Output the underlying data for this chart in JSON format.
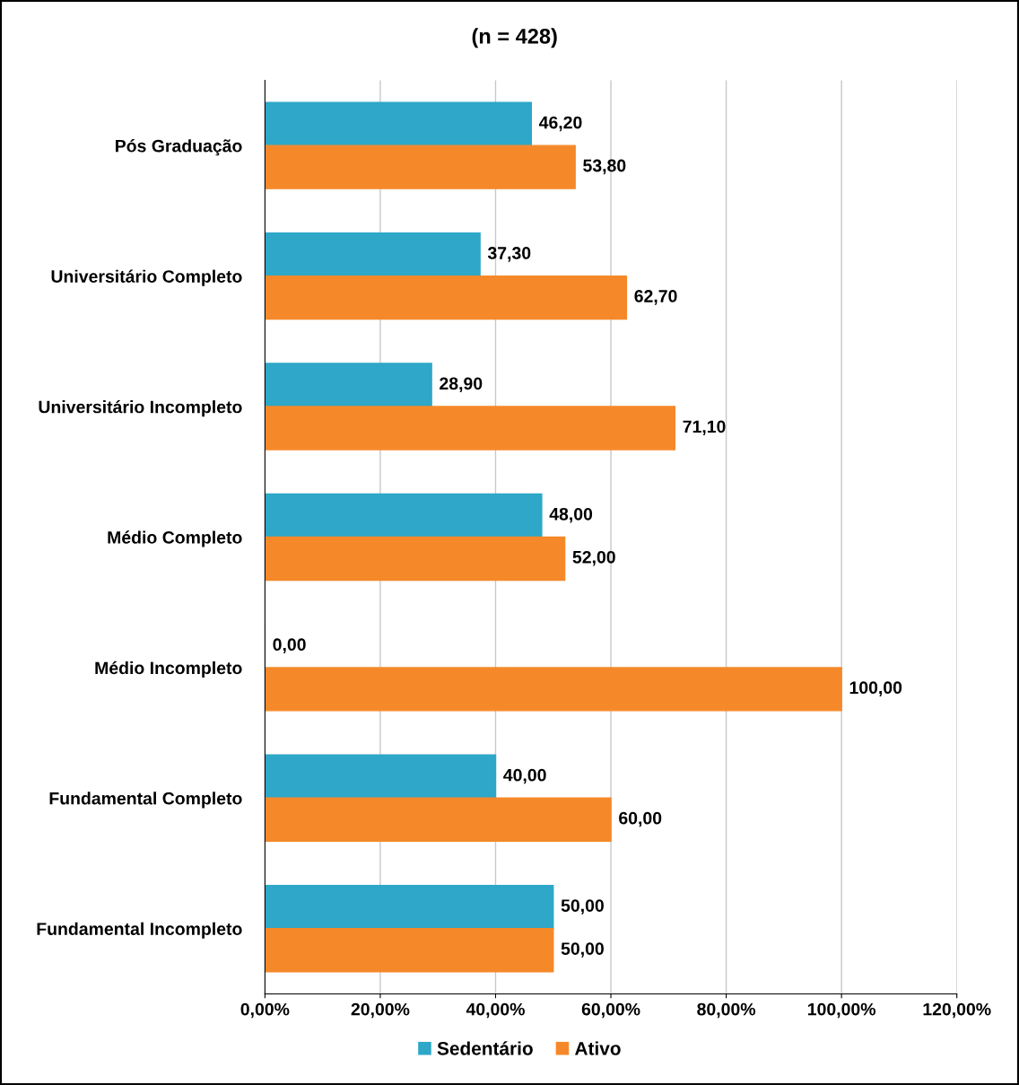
{
  "chart_data": {
    "type": "bar",
    "orientation": "horizontal",
    "title": "(n = 428)",
    "categories": [
      "Pós Graduação",
      "Universitário Completo",
      "Universitário Incompleto",
      "Médio Completo",
      "Médio Incompleto",
      "Fundamental Completo",
      "Fundamental Incompleto"
    ],
    "series": [
      {
        "name": "Sedentário",
        "color": "#2ea7c8",
        "values": [
          46.2,
          37.3,
          28.9,
          48.0,
          0.0,
          40.0,
          50.0
        ],
        "value_labels": [
          "46,20",
          "37,30",
          "28,90",
          "48,00",
          "0,00",
          "40,00",
          "50,00"
        ]
      },
      {
        "name": "Ativo",
        "color": "#f5892a",
        "values": [
          53.8,
          62.7,
          71.1,
          52.0,
          100.0,
          60.0,
          50.0
        ],
        "value_labels": [
          "53,80",
          "62,70",
          "71,10",
          "52,00",
          "100,00",
          "60,00",
          "50,00"
        ]
      }
    ],
    "xlim": [
      0,
      120
    ],
    "xticks": [
      {
        "value": 0,
        "label": "0,00%"
      },
      {
        "value": 20,
        "label": "20,00%"
      },
      {
        "value": 40,
        "label": "40,00%"
      },
      {
        "value": 60,
        "label": "60,00%"
      },
      {
        "value": 80,
        "label": "80,00%"
      },
      {
        "value": 100,
        "label": "100,00%"
      },
      {
        "value": 120,
        "label": "120,00%"
      }
    ],
    "grid": "x",
    "legend": "bottom"
  }
}
